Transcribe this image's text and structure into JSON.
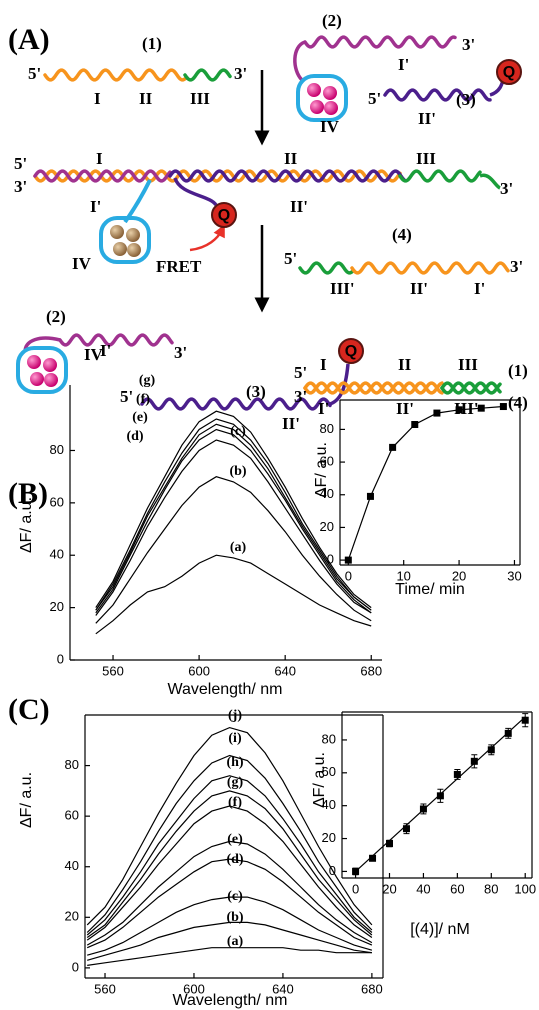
{
  "panel_labels": [
    "(A)",
    "(B)",
    "(C)"
  ],
  "diagram": {
    "labels": [
      "(1)",
      "5'",
      "I",
      "II",
      "III",
      "3'",
      "(2)",
      "I'",
      "3'",
      "IV",
      "(3)",
      "5'",
      "II'",
      "Q",
      "5'",
      "I",
      "II",
      "III",
      "3'",
      "I'",
      "II'",
      "3'",
      "Q",
      "IV",
      "FRET",
      "(4)",
      "5'",
      "III'",
      "II'",
      "I'",
      "3'",
      "(2)",
      "I'",
      "3'",
      "IV",
      "(3)",
      "5'",
      "II'",
      "Q",
      "5'",
      "I",
      "II",
      "III",
      "(1)",
      "3'",
      "I'",
      "II'",
      "III'",
      "(4)"
    ]
  },
  "chart_data": [
    {
      "type": "line",
      "color": "#000000",
      "x_label": "Wavelength/ nm",
      "y_label": "ΔF/ a.u.",
      "x": [
        552,
        560,
        568,
        576,
        584,
        592,
        600,
        608,
        616,
        624,
        632,
        640,
        648,
        656,
        664,
        672,
        680
      ],
      "xlim": [
        540,
        685
      ],
      "xticks": [
        560,
        600,
        640,
        680
      ],
      "ylim": [
        0,
        105
      ],
      "yticks": [
        0,
        20,
        40,
        60,
        80
      ],
      "series": [
        {
          "name": "(a)",
          "values": [
            10,
            15,
            21,
            26,
            28,
            32,
            37,
            40,
            39,
            37,
            33,
            29,
            25,
            21,
            18,
            15,
            13
          ]
        },
        {
          "name": "(b)",
          "values": [
            14,
            21,
            31,
            41,
            50,
            59,
            66,
            70,
            68,
            64,
            57,
            49,
            40,
            32,
            25,
            19,
            15
          ]
        },
        {
          "name": "(c)",
          "values": [
            17,
            26,
            38,
            51,
            62,
            72,
            80,
            84,
            82,
            77,
            68,
            58,
            48,
            38,
            29,
            22,
            18
          ]
        },
        {
          "name": "(d)",
          "values": [
            18,
            27,
            40,
            53,
            65,
            76,
            84,
            88,
            86,
            80,
            71,
            61,
            50,
            40,
            30,
            23,
            18
          ]
        },
        {
          "name": "(e)",
          "values": [
            19,
            28,
            41,
            55,
            66,
            77,
            86,
            90,
            88,
            82,
            73,
            62,
            51,
            41,
            31,
            24,
            19
          ]
        },
        {
          "name": "(f)",
          "values": [
            19,
            29,
            42,
            56,
            68,
            79,
            88,
            92,
            90,
            84,
            75,
            64,
            52,
            42,
            32,
            24,
            19
          ]
        },
        {
          "name": "(g)",
          "values": [
            20,
            30,
            44,
            58,
            70,
            82,
            91,
            95,
            93,
            87,
            77,
            66,
            54,
            43,
            33,
            25,
            20
          ]
        }
      ]
    },
    {
      "type": "line",
      "markers": true,
      "color": "#000000",
      "x_label": "Time/ min",
      "y_label": "ΔF/ a.u.",
      "x": [
        0,
        4,
        8,
        12,
        16,
        20,
        24,
        28
      ],
      "values": [
        0,
        39,
        69,
        83,
        90,
        92,
        93,
        94
      ],
      "xlim": [
        -1.5,
        31
      ],
      "xticks": [
        0,
        10,
        20,
        30
      ],
      "ylim": [
        -3,
        98
      ],
      "yticks": [
        0,
        20,
        40,
        60,
        80
      ]
    },
    {
      "type": "line",
      "color": "#000000",
      "x_label": "Wavelength/ nm",
      "y_label": "ΔF/ a.u.",
      "x": [
        552,
        560,
        568,
        576,
        584,
        592,
        600,
        608,
        616,
        624,
        632,
        640,
        648,
        656,
        664,
        672,
        680
      ],
      "xlim": [
        551,
        685
      ],
      "xticks": [
        560,
        600,
        640,
        680
      ],
      "ylim": [
        -4,
        100
      ],
      "yticks": [
        0,
        20,
        40,
        60,
        80
      ],
      "series": [
        {
          "name": "(a)",
          "values": [
            1,
            2,
            3,
            4,
            5,
            6,
            7,
            8,
            8,
            8,
            8,
            8,
            7,
            7,
            6,
            6,
            6
          ]
        },
        {
          "name": "(b)",
          "values": [
            3,
            5,
            7,
            9,
            12,
            14,
            16,
            17,
            18,
            18,
            17,
            15,
            13,
            11,
            9,
            7,
            6
          ]
        },
        {
          "name": "(c)",
          "values": [
            5,
            7,
            10,
            14,
            18,
            22,
            25,
            27,
            28,
            28,
            26,
            23,
            19,
            15,
            12,
            9,
            7
          ]
        },
        {
          "name": "(d)",
          "values": [
            8,
            11,
            16,
            22,
            28,
            33,
            38,
            42,
            43,
            42,
            39,
            34,
            28,
            22,
            17,
            12,
            9
          ]
        },
        {
          "name": "(e)",
          "values": [
            9,
            13,
            18,
            25,
            32,
            38,
            44,
            48,
            50,
            49,
            45,
            39,
            32,
            25,
            19,
            14,
            10
          ]
        },
        {
          "name": "(f)",
          "values": [
            11,
            16,
            24,
            32,
            41,
            49,
            57,
            62,
            64,
            62,
            57,
            50,
            41,
            32,
            24,
            17,
            12
          ]
        },
        {
          "name": "(g)",
          "values": [
            12,
            17,
            26,
            35,
            45,
            54,
            62,
            68,
            70,
            68,
            63,
            55,
            45,
            35,
            27,
            19,
            13
          ]
        },
        {
          "name": "(h)",
          "values": [
            13,
            19,
            28,
            38,
            49,
            58,
            67,
            74,
            76,
            74,
            68,
            59,
            49,
            38,
            29,
            20,
            14
          ]
        },
        {
          "name": "(i)",
          "values": [
            14,
            21,
            31,
            42,
            54,
            65,
            74,
            81,
            84,
            82,
            75,
            65,
            54,
            42,
            32,
            22,
            15
          ]
        },
        {
          "name": "(j)",
          "values": [
            17,
            24,
            35,
            48,
            61,
            73,
            84,
            92,
            95,
            93,
            85,
            74,
            61,
            48,
            36,
            25,
            17
          ]
        }
      ]
    },
    {
      "type": "scatter",
      "color": "#000000",
      "x_label": "[(4)]/ nM",
      "y_label": "ΔF/ a.u.",
      "x": [
        0,
        10,
        20,
        30,
        40,
        50,
        60,
        70,
        80,
        90,
        100
      ],
      "values": [
        0,
        8,
        17,
        26,
        38,
        46,
        59,
        67,
        74,
        84,
        92
      ],
      "errors": [
        2,
        1,
        2,
        3,
        3,
        4,
        3,
        4,
        3,
        3,
        4
      ],
      "fit": {
        "x": [
          0,
          100
        ],
        "values": [
          0,
          94
        ]
      },
      "xlim": [
        -8,
        104
      ],
      "xticks": [
        0,
        20,
        40,
        60,
        80,
        100
      ],
      "ylim": [
        -4,
        97
      ],
      "yticks": [
        0,
        20,
        40,
        60,
        80
      ]
    }
  ]
}
